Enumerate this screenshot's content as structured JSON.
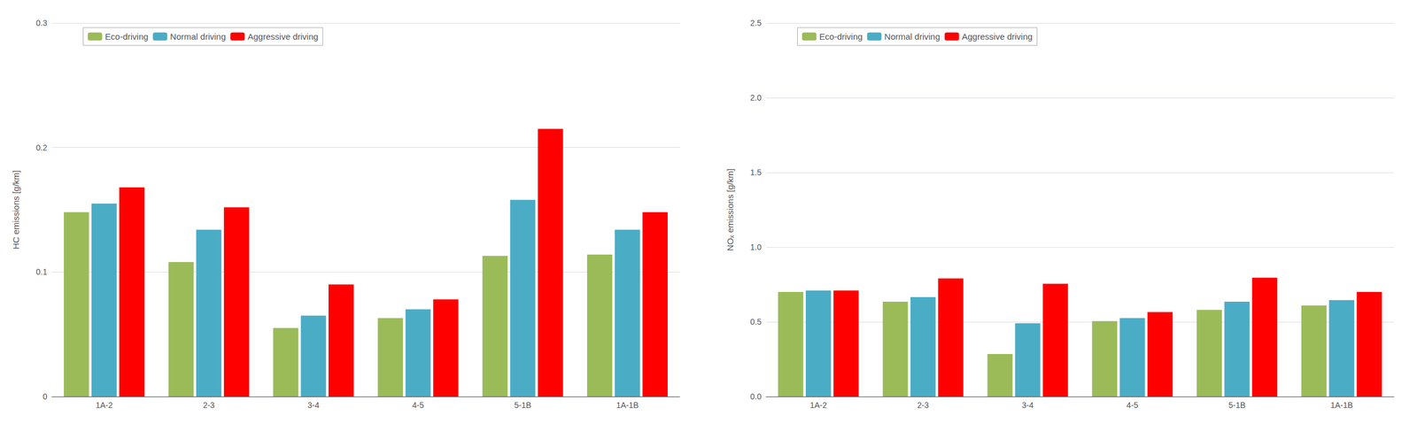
{
  "chart_data": [
    {
      "type": "bar",
      "categories": [
        "1A-2",
        "2-3",
        "3-4",
        "4-5",
        "5-1B",
        "1A-1B"
      ],
      "series": [
        {
          "name": "Eco-driving",
          "color": "#9BBB59",
          "values": [
            0.148,
            0.108,
            0.055,
            0.063,
            0.113,
            0.114
          ]
        },
        {
          "name": "Normal driving",
          "color": "#4BACC6",
          "values": [
            0.155,
            0.134,
            0.065,
            0.07,
            0.158,
            0.134
          ]
        },
        {
          "name": "Aggressive driving",
          "color": "#FF0000",
          "values": [
            0.168,
            0.152,
            0.09,
            0.078,
            0.215,
            0.148
          ]
        }
      ],
      "ylabel": "HC emissions [g/km]",
      "ylim": [
        0,
        0.3
      ],
      "yticks": [
        0,
        0.1,
        0.2,
        0.3
      ],
      "grid": true,
      "legend": "upper left"
    },
    {
      "type": "bar",
      "categories": [
        "1A-2",
        "2-3",
        "3-4",
        "4-5",
        "5-1B",
        "1A-1B"
      ],
      "series": [
        {
          "name": "Eco-driving",
          "color": "#9BBB59",
          "values": [
            0.7,
            0.635,
            0.285,
            0.505,
            0.58,
            0.61
          ]
        },
        {
          "name": "Normal driving",
          "color": "#4BACC6",
          "values": [
            0.71,
            0.665,
            0.49,
            0.525,
            0.635,
            0.645
          ]
        },
        {
          "name": "Aggressive driving",
          "color": "#FF0000",
          "values": [
            0.71,
            0.79,
            0.755,
            0.565,
            0.795,
            0.7
          ]
        }
      ],
      "ylabel": "NOₓ emissions [g/km]",
      "ylim": [
        0.0,
        2.5
      ],
      "yticks": [
        {
          "value": 0,
          "label": "0.0"
        },
        0.5,
        {
          "value": 1,
          "label": "1.0"
        },
        1.5,
        {
          "value": 2,
          "label": "2.0"
        },
        2.5
      ],
      "grid": true,
      "legend": "upper left"
    }
  ]
}
